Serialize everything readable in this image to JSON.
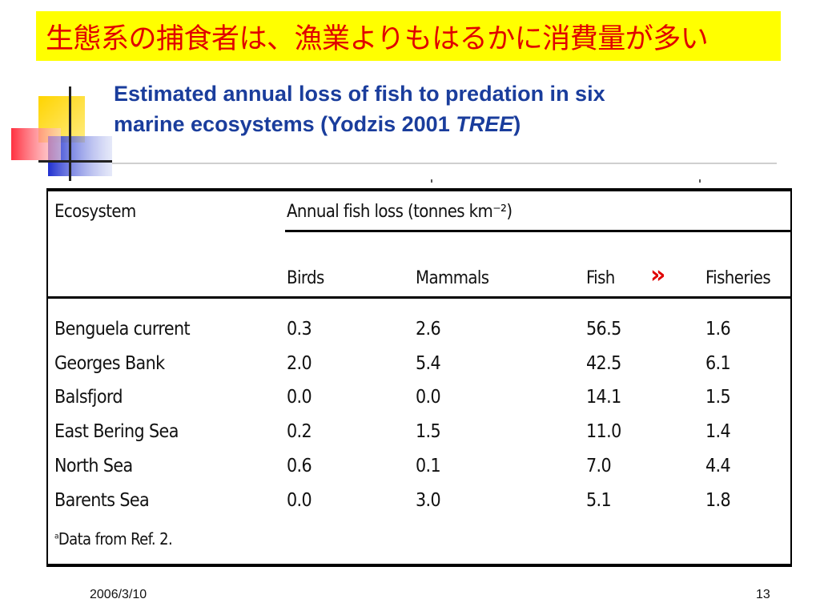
{
  "slide": {
    "banner_title": "生態系の捕食者は、漁業よりもはるかに消費量が多い",
    "heading_line1": "Estimated annual loss of fish to predation in six",
    "heading_line2_prefix": "marine ecosystems (Yodzis 2001 ",
    "heading_line2_italic": "TREE",
    "heading_line2_suffix": ")",
    "marker_glyph": "»",
    "footer_date": "2006/3/10",
    "footer_page": "13"
  },
  "table": {
    "col_ecosystem": "Ecosystem",
    "group_header": "Annual fish loss (tonnes km⁻²)",
    "columns": [
      "Birds",
      "Mammals",
      "Fish",
      "Fisheries"
    ],
    "rows": [
      {
        "ecosystem": "Benguela current",
        "birds": "0.3",
        "mammals": "2.6",
        "fish": "56.5",
        "fisheries": "1.6"
      },
      {
        "ecosystem": "Georges Bank",
        "birds": "2.0",
        "mammals": "5.4",
        "fish": "42.5",
        "fisheries": "6.1"
      },
      {
        "ecosystem": "Balsfjord",
        "birds": "0.0",
        "mammals": "0.0",
        "fish": "14.1",
        "fisheries": "1.5"
      },
      {
        "ecosystem": "East Bering Sea",
        "birds": "0.2",
        "mammals": "1.5",
        "fish": "11.0",
        "fisheries": "1.4"
      },
      {
        "ecosystem": "North Sea",
        "birds": "0.6",
        "mammals": "0.1",
        "fish": "7.0",
        "fisheries": "4.4"
      },
      {
        "ecosystem": "Barents Sea",
        "birds": "0.0",
        "mammals": "3.0",
        "fish": "5.1",
        "fisheries": "1.8"
      }
    ],
    "footnote_mark": "a",
    "footnote_text": "Data from Ref. 2."
  },
  "colors": {
    "banner_bg": "#ffff00",
    "banner_text": "#e00000",
    "heading": "#1a3d9c",
    "marker": "#e00000"
  }
}
